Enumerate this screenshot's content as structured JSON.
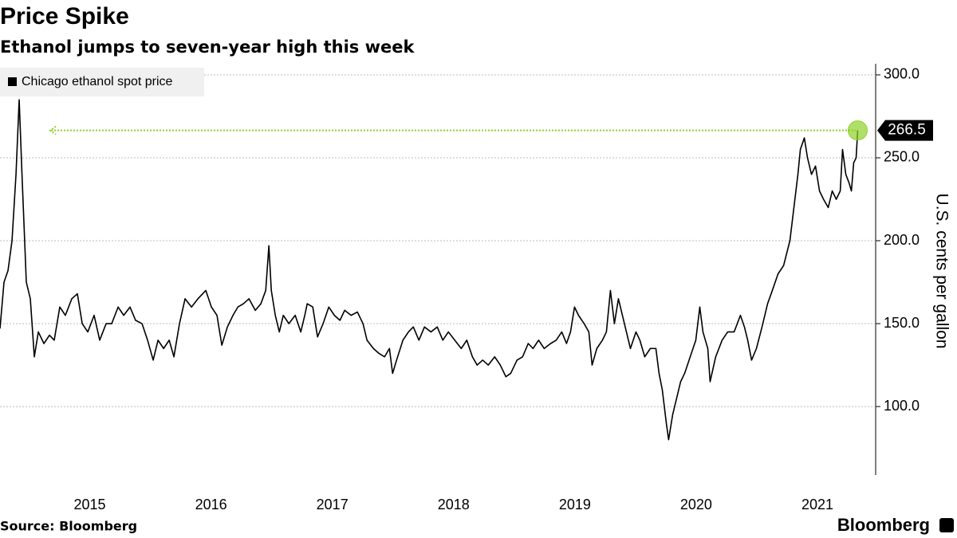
{
  "chart_data": {
    "type": "line",
    "title": "Price Spike",
    "subtitle": "Ethanol jumps to seven-year high this week",
    "y_label": "U.S. cents per gallon",
    "source": "Source: Bloomberg",
    "brand": "Bloomberg",
    "legend": "top-left",
    "grid": true,
    "highlight_color": "#8fd12a",
    "xlim": [
      2014.26,
      2021.48
    ],
    "xticks": [
      2015,
      2016,
      2017,
      2018,
      2019,
      2020,
      2021
    ],
    "ylim": [
      58.7,
      306.7
    ],
    "yticks": [
      {
        "value": 100,
        "label": "100.0"
      },
      {
        "value": 150,
        "label": "150.0"
      },
      {
        "value": 200,
        "label": "200.0"
      },
      {
        "value": 250,
        "label": "250.0"
      },
      {
        "value": 300,
        "label": "300.0"
      }
    ],
    "x": [
      2014.26,
      2014.293,
      2014.326,
      2014.359,
      2014.392,
      2014.418,
      2014.444,
      2014.477,
      2014.51,
      2014.543,
      2014.576,
      2014.622,
      2014.668,
      2014.707,
      2014.753,
      2014.799,
      2014.852,
      2014.898,
      2014.938,
      2014.984,
      2015.036,
      2015.082,
      2015.135,
      2015.181,
      2015.234,
      2015.28,
      2015.332,
      2015.378,
      2015.431,
      2015.477,
      2015.523,
      2015.563,
      2015.609,
      2015.655,
      2015.694,
      2015.74,
      2015.786,
      2015.839,
      2015.892,
      2015.957,
      2016.003,
      2016.049,
      2016.089,
      2016.135,
      2016.181,
      2016.221,
      2016.267,
      2016.313,
      2016.365,
      2016.411,
      2016.451,
      2016.477,
      2016.497,
      2016.53,
      2016.563,
      2016.596,
      2016.642,
      2016.694,
      2016.74,
      2016.773,
      2016.793,
      2016.839,
      2016.878,
      2016.924,
      2016.971,
      2017.017,
      2017.063,
      2017.102,
      2017.155,
      2017.207,
      2017.253,
      2017.286,
      2017.339,
      2017.385,
      2017.431,
      2017.471,
      2017.497,
      2017.53,
      2017.582,
      2017.628,
      2017.668,
      2017.714,
      2017.76,
      2017.813,
      2017.865,
      2017.911,
      2017.957,
      2018.01,
      2018.063,
      2018.109,
      2018.155,
      2018.194,
      2018.24,
      2018.286,
      2018.339,
      2018.385,
      2018.431,
      2018.471,
      2018.523,
      2018.569,
      2018.615,
      2018.655,
      2018.701,
      2018.747,
      2018.8,
      2018.846,
      2018.892,
      2018.931,
      2018.964,
      2018.997,
      2019.03,
      2019.076,
      2019.115,
      2019.142,
      2019.181,
      2019.227,
      2019.26,
      2019.293,
      2019.326,
      2019.359,
      2019.392,
      2019.425,
      2019.458,
      2019.504,
      2019.536,
      2019.576,
      2019.622,
      2019.668,
      2019.694,
      2019.721,
      2019.754,
      2019.773,
      2019.806,
      2019.839,
      2019.872,
      2019.905,
      2019.951,
      2019.997,
      2020.03,
      2020.056,
      2020.096,
      2020.115,
      2020.161,
      2020.214,
      2020.26,
      2020.313,
      2020.365,
      2020.398,
      2020.425,
      2020.457,
      2020.497,
      2020.543,
      2020.589,
      2020.628,
      2020.675,
      2020.721,
      2020.773,
      2020.806,
      2020.839,
      2020.859,
      2020.892,
      2020.918,
      2020.951,
      2020.984,
      2021.017,
      2021.05,
      2021.089,
      2021.122,
      2021.155,
      2021.188,
      2021.207,
      2021.234,
      2021.26,
      2021.28,
      2021.299,
      2021.319,
      2021.332
    ],
    "series": [
      {
        "name": "Chicago ethanol spot price",
        "color": "#000000",
        "values": [
          147,
          175,
          182,
          200,
          240,
          285,
          235,
          175,
          165,
          130,
          145,
          138,
          143,
          140,
          160,
          155,
          165,
          168,
          150,
          145,
          155,
          140,
          150,
          150,
          160,
          155,
          160,
          152,
          150,
          140,
          128,
          140,
          135,
          140,
          130,
          150,
          165,
          160,
          165,
          170,
          160,
          155,
          137,
          148,
          155,
          160,
          162,
          165,
          158,
          162,
          170,
          197,
          170,
          155,
          145,
          155,
          150,
          155,
          145,
          155,
          162,
          160,
          142,
          150,
          160,
          155,
          152,
          158,
          155,
          157,
          150,
          140,
          135,
          132,
          130,
          135,
          120,
          128,
          140,
          145,
          148,
          140,
          148,
          145,
          148,
          140,
          145,
          140,
          135,
          140,
          130,
          125,
          128,
          125,
          130,
          125,
          118,
          120,
          128,
          130,
          138,
          135,
          140,
          135,
          138,
          140,
          145,
          138,
          145,
          160,
          155,
          150,
          145,
          125,
          135,
          140,
          145,
          170,
          150,
          165,
          155,
          145,
          135,
          145,
          140,
          130,
          135,
          135,
          120,
          110,
          90,
          80,
          95,
          105,
          115,
          120,
          130,
          140,
          160,
          145,
          135,
          115,
          130,
          140,
          145,
          145,
          155,
          148,
          140,
          128,
          135,
          148,
          162,
          170,
          180,
          185,
          200,
          220,
          240,
          255,
          262,
          250,
          240,
          245,
          230,
          225,
          220,
          230,
          225,
          230,
          255,
          240,
          235,
          230,
          247,
          250,
          266.5
        ]
      }
    ]
  }
}
